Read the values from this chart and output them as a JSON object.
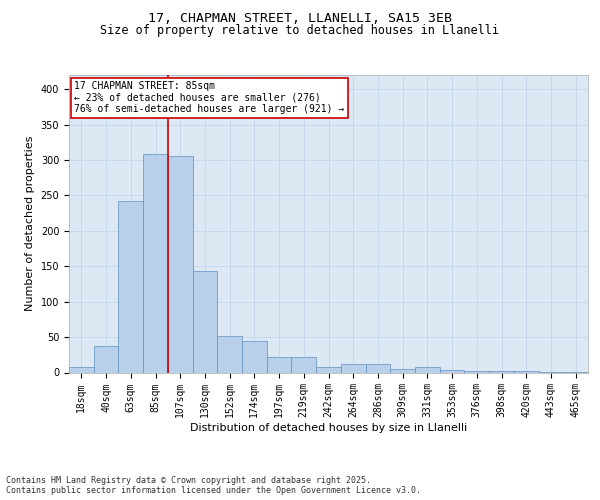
{
  "title1": "17, CHAPMAN STREET, LLANELLI, SA15 3EB",
  "title2": "Size of property relative to detached houses in Llanelli",
  "xlabel": "Distribution of detached houses by size in Llanelli",
  "ylabel": "Number of detached properties",
  "categories": [
    "18sqm",
    "40sqm",
    "63sqm",
    "85sqm",
    "107sqm",
    "130sqm",
    "152sqm",
    "174sqm",
    "197sqm",
    "219sqm",
    "242sqm",
    "264sqm",
    "286sqm",
    "309sqm",
    "331sqm",
    "353sqm",
    "376sqm",
    "398sqm",
    "420sqm",
    "443sqm",
    "465sqm"
  ],
  "bar_heights": [
    8,
    38,
    242,
    308,
    305,
    143,
    52,
    45,
    22,
    22,
    8,
    12,
    12,
    5,
    8,
    3,
    2,
    2,
    2,
    1,
    1
  ],
  "bar_color": "#b8d0ea",
  "bar_edge_color": "#6090c0",
  "grid_color": "#c8d8ec",
  "background_color": "#dce8f4",
  "red_line_index": 3,
  "red_line_color": "#cc0000",
  "annotation_text": "17 CHAPMAN STREET: 85sqm\n← 23% of detached houses are smaller (276)\n76% of semi-detached houses are larger (921) →",
  "annotation_box_facecolor": "#ffffff",
  "annotation_box_edgecolor": "#cc0000",
  "footnote": "Contains HM Land Registry data © Crown copyright and database right 2025.\nContains public sector information licensed under the Open Government Licence v3.0.",
  "ylim": [
    0,
    420
  ],
  "yticks": [
    0,
    50,
    100,
    150,
    200,
    250,
    300,
    350,
    400
  ],
  "title1_fontsize": 9.5,
  "title2_fontsize": 8.5,
  "xlabel_fontsize": 8,
  "ylabel_fontsize": 8,
  "tick_fontsize": 7,
  "annot_fontsize": 7,
  "footnote_fontsize": 6
}
